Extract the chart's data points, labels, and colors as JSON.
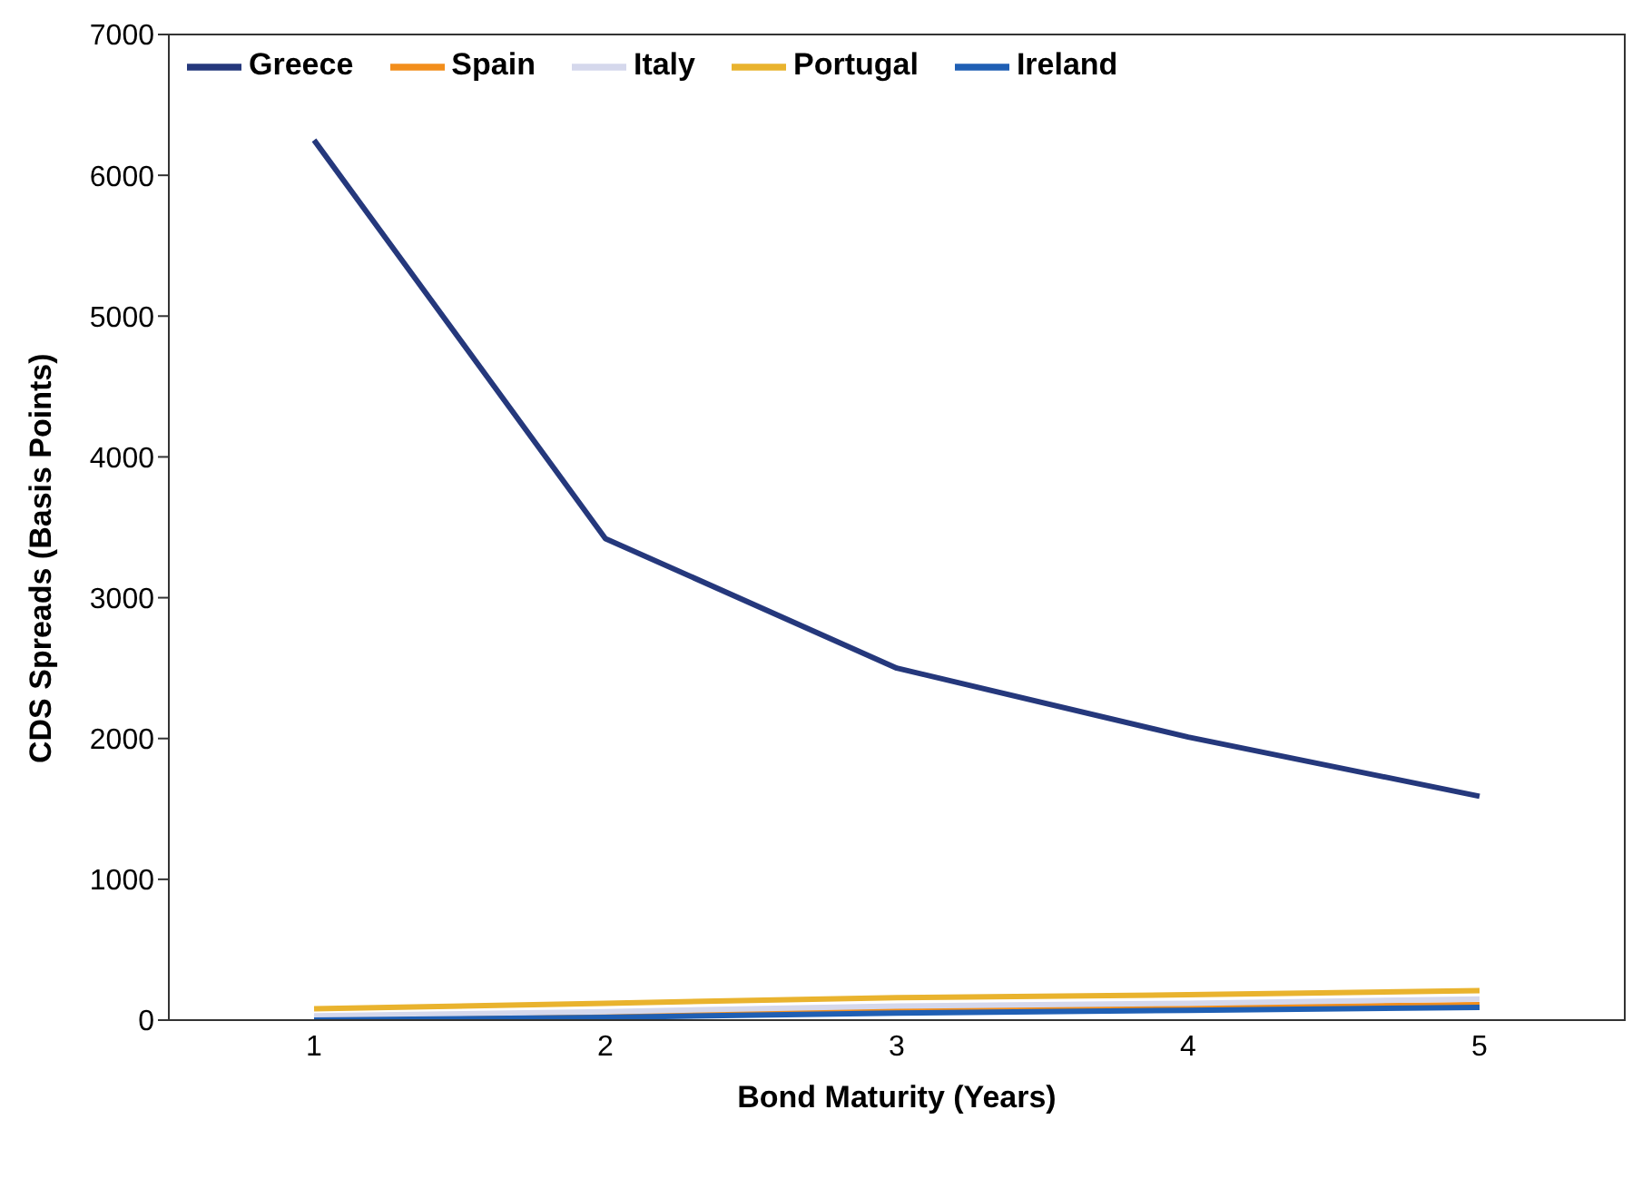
{
  "chart_data": {
    "type": "line",
    "xlabel": "Bond Maturity (Years)",
    "ylabel": "CDS Spreads (Basis Points)",
    "categories": [
      "1",
      "2",
      "3",
      "4",
      "5"
    ],
    "series": [
      {
        "name": "Greece",
        "color": "#25387c",
        "values": [
          6250,
          3420,
          2500,
          2010,
          1590
        ]
      },
      {
        "name": "Spain",
        "color": "#f28e1c",
        "values": [
          20,
          40,
          70,
          90,
          110
        ]
      },
      {
        "name": "Italy",
        "color": "#d5d8ec",
        "values": [
          30,
          60,
          100,
          120,
          150
        ]
      },
      {
        "name": "Portugal",
        "color": "#e9b32e",
        "values": [
          80,
          120,
          160,
          180,
          210
        ]
      },
      {
        "name": "Ireland",
        "color": "#1f5fb4",
        "values": [
          0,
          20,
          50,
          70,
          90
        ]
      }
    ],
    "ylim": [
      0,
      7000
    ],
    "yticks": [
      0,
      1000,
      2000,
      3000,
      4000,
      5000,
      6000,
      7000
    ],
    "grid": false,
    "legend": "top left",
    "marker": "none",
    "line_style": "solid"
  }
}
